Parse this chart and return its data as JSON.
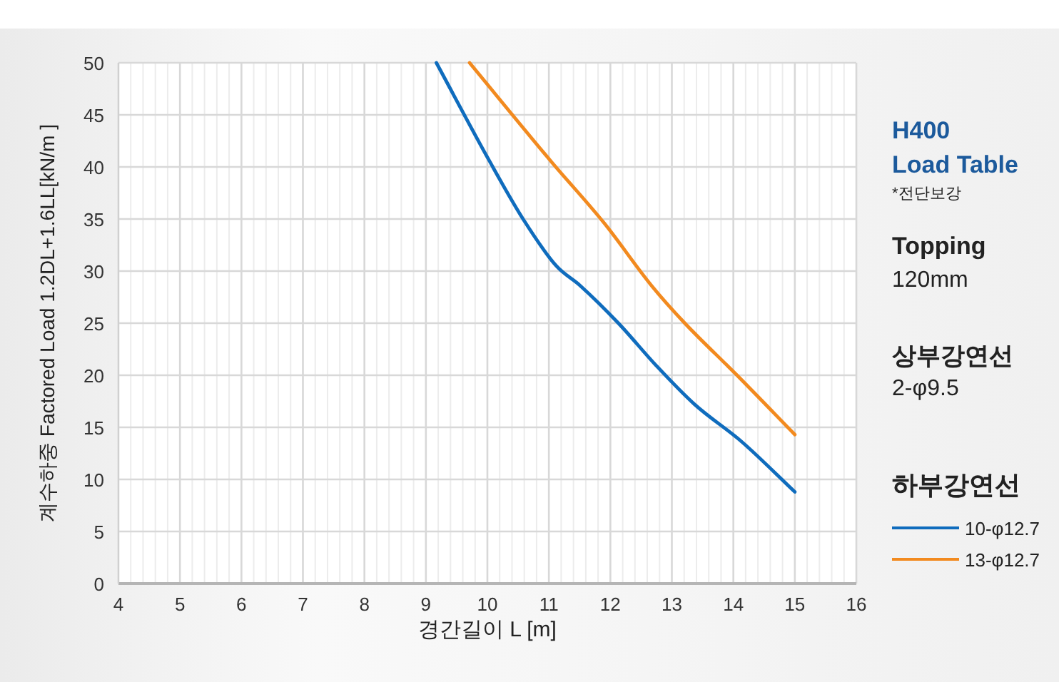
{
  "chart_data": {
    "type": "line",
    "title": "H400 Load Table",
    "subtitle": "*전단보강",
    "annotations": [
      "Topping",
      "120mm",
      "상부강연선",
      "2-φ9.5"
    ],
    "xlabel": "경간길이 L [m]",
    "ylabel": "계수하중 Factored Load 1.2DL+1.6LL[kN/m ]",
    "legend_title": "하부강연선",
    "legend": "right",
    "grid": true,
    "xlim": [
      4,
      16
    ],
    "ylim": [
      0,
      50
    ],
    "xticks": [
      4,
      {
        "value": 4.2,
        "label": null
      },
      {
        "value": 4.4,
        "label": null
      },
      {
        "value": 4.6,
        "label": null
      },
      {
        "value": 4.8,
        "label": null
      },
      5,
      {
        "value": 5.2,
        "label": null
      },
      {
        "value": 5.4,
        "label": null
      },
      {
        "value": 5.6,
        "label": null
      },
      {
        "value": 5.8,
        "label": null
      },
      6,
      {
        "value": 6.2,
        "label": null
      },
      {
        "value": 6.4,
        "label": null
      },
      {
        "value": 6.6,
        "label": null
      },
      {
        "value": 6.8,
        "label": null
      },
      7,
      {
        "value": 7.2,
        "label": null
      },
      {
        "value": 7.4,
        "label": null
      },
      {
        "value": 7.6,
        "label": null
      },
      {
        "value": 7.8,
        "label": null
      },
      8,
      {
        "value": 8.2,
        "label": null
      },
      {
        "value": 8.4,
        "label": null
      },
      {
        "value": 8.6,
        "label": null
      },
      {
        "value": 8.8,
        "label": null
      },
      9,
      {
        "value": 9.2,
        "label": null
      },
      {
        "value": 9.4,
        "label": null
      },
      {
        "value": 9.6,
        "label": null
      },
      {
        "value": 9.8,
        "label": null
      },
      10,
      {
        "value": 10.2,
        "label": null
      },
      {
        "value": 10.4,
        "label": null
      },
      {
        "value": 10.6,
        "label": null
      },
      {
        "value": 10.8,
        "label": null
      },
      11,
      {
        "value": 11.2,
        "label": null
      },
      {
        "value": 11.4,
        "label": null
      },
      {
        "value": 11.6,
        "label": null
      },
      {
        "value": 11.8,
        "label": null
      },
      12,
      {
        "value": 12.2,
        "label": null
      },
      {
        "value": 12.4,
        "label": null
      },
      {
        "value": 12.6,
        "label": null
      },
      {
        "value": 12.8,
        "label": null
      },
      13,
      {
        "value": 13.2,
        "label": null
      },
      {
        "value": 13.4,
        "label": null
      },
      {
        "value": 13.6,
        "label": null
      },
      {
        "value": 13.8,
        "label": null
      },
      14,
      {
        "value": 14.2,
        "label": null
      },
      {
        "value": 14.4,
        "label": null
      },
      {
        "value": 14.6,
        "label": null
      },
      {
        "value": 14.8,
        "label": null
      },
      15,
      {
        "value": 15.2,
        "label": null
      },
      {
        "value": 15.4,
        "label": null
      },
      {
        "value": 15.6,
        "label": null
      },
      {
        "value": 15.8,
        "label": null
      },
      16
    ],
    "yticks": [
      0,
      5,
      10,
      15,
      20,
      25,
      30,
      35,
      40,
      45,
      50
    ],
    "line_style": "solid",
    "marker": "none",
    "series": [
      {
        "name": "10-φ12.7",
        "color": "#0f6cbd",
        "x": [
          9.17,
          10.04,
          10.58,
          11.12,
          11.51,
          12.13,
          12.75,
          13.37,
          14.14,
          15
        ],
        "values": [
          50,
          40.5,
          35,
          30.5,
          28.6,
          25,
          20.9,
          17.2,
          13.6,
          8.8
        ]
      },
      {
        "name": "13-φ12.7",
        "color": "#f28a1f",
        "x": [
          9.71,
          11.04,
          11.9,
          12.67,
          13.21,
          14.06,
          15
        ],
        "values": [
          50,
          40.5,
          34.6,
          28.6,
          25,
          20,
          14.3
        ]
      }
    ]
  }
}
